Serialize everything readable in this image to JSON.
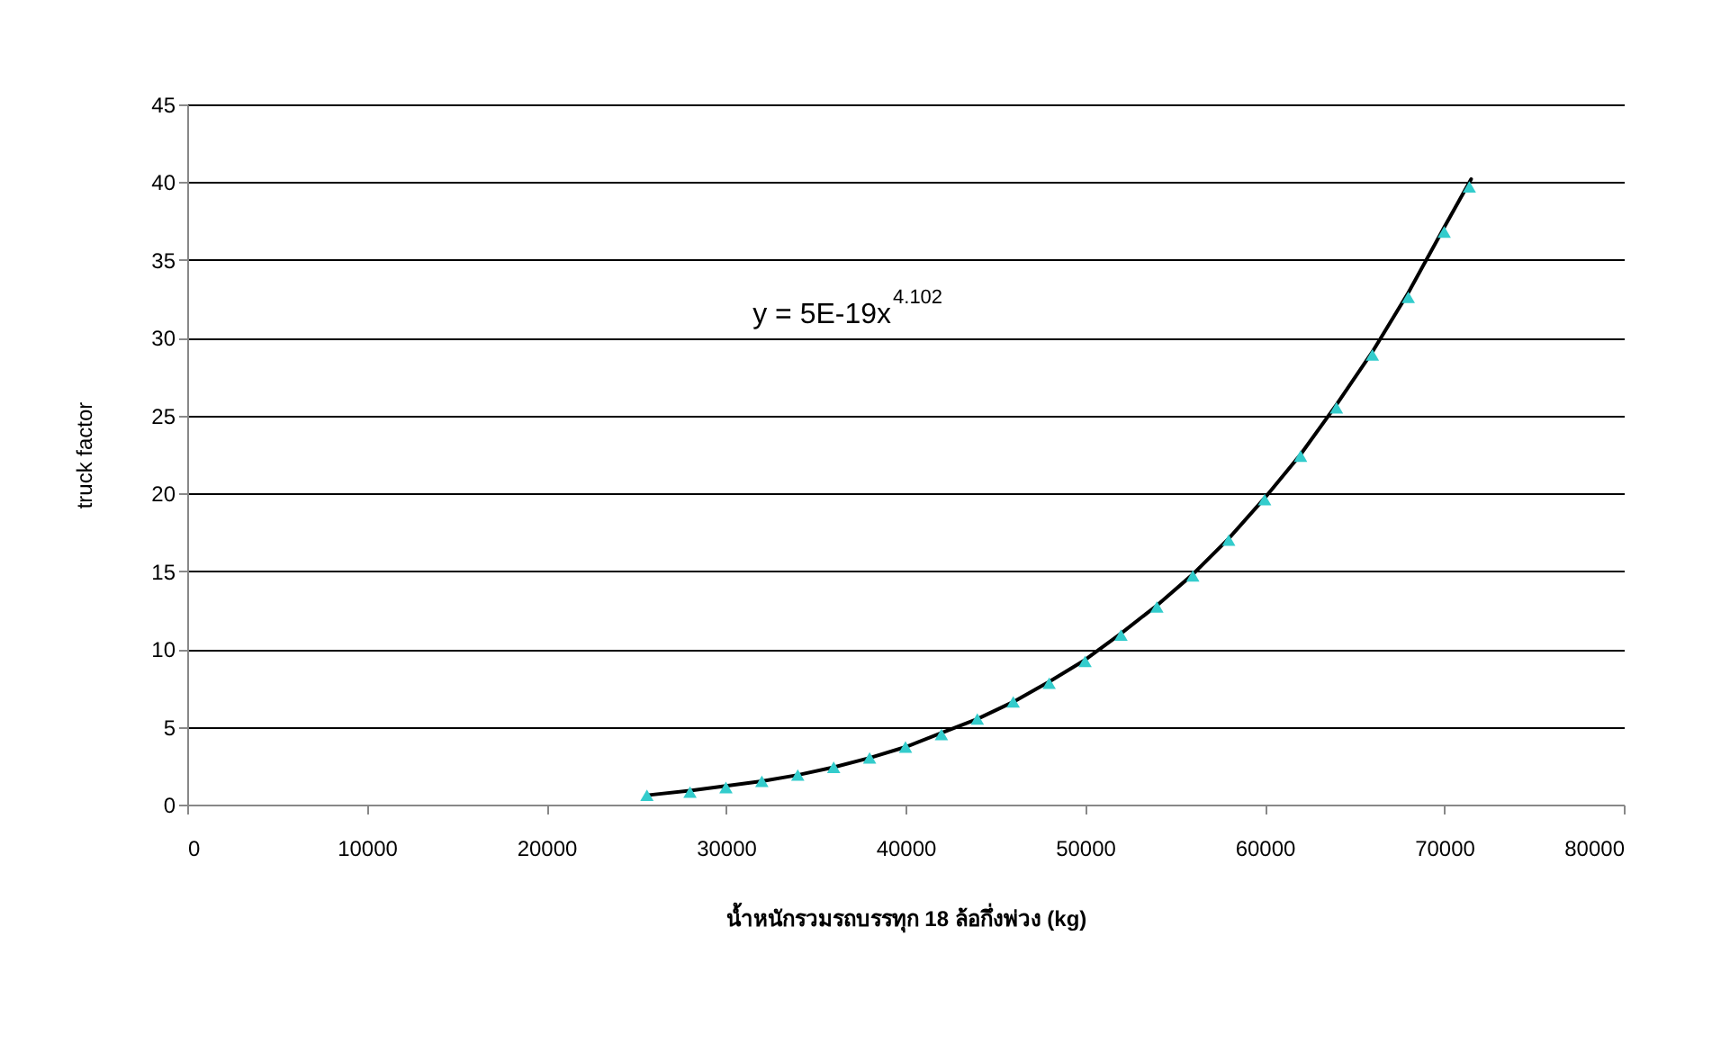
{
  "chart_data": {
    "type": "scatter",
    "xlabel": "น้ำหนักรวมรถบรรทุก 18 ล้อกึ่งพ่วง (kg)",
    "ylabel": "truck factor",
    "annotations": [
      "y = 5E-19x$^{4.102}$"
    ],
    "xlim": [
      0,
      80000
    ],
    "xticks": [
      0,
      10000,
      20000,
      30000,
      40000,
      50000,
      60000,
      70000,
      80000
    ],
    "ylim": [
      0,
      45
    ],
    "yticks": [
      0,
      5,
      10,
      15,
      20,
      25,
      30,
      35,
      40,
      45
    ],
    "grid": "y",
    "series": [
      {
        "marker": "triangle",
        "color": "#33cccc",
        "x": [
          25600,
          28000,
          30000,
          32000,
          34000,
          36000,
          38000,
          40000,
          42000,
          44000,
          46000,
          48000,
          50000,
          52000,
          54000,
          56000,
          58000,
          60000,
          62000,
          64000,
          66000,
          68000,
          70000,
          71400
        ],
        "values": [
          0.6,
          0.8,
          1.1,
          1.5,
          1.9,
          2.4,
          3.0,
          3.7,
          4.5,
          5.5,
          6.6,
          7.8,
          9.2,
          10.9,
          12.7,
          14.7,
          17.0,
          19.6,
          22.4,
          25.5,
          28.9,
          32.6,
          36.8,
          39.7
        ]
      },
      {
        "type": "line",
        "color": "#000000",
        "line_style": "solid",
        "x": [
          25600,
          28000,
          30000,
          32000,
          34000,
          36000,
          38000,
          40000,
          42000,
          44000,
          46000,
          48000,
          50000,
          52000,
          54000,
          56000,
          58000,
          60000,
          62000,
          64000,
          66000,
          68000,
          70000,
          71500
        ],
        "values": [
          0.6,
          0.9,
          1.2,
          1.5,
          1.9,
          2.4,
          3.0,
          3.7,
          4.6,
          5.5,
          6.6,
          7.9,
          9.3,
          11.0,
          12.8,
          14.8,
          17.1,
          19.7,
          22.5,
          25.7,
          29.1,
          32.9,
          37.1,
          40.2
        ]
      }
    ]
  }
}
